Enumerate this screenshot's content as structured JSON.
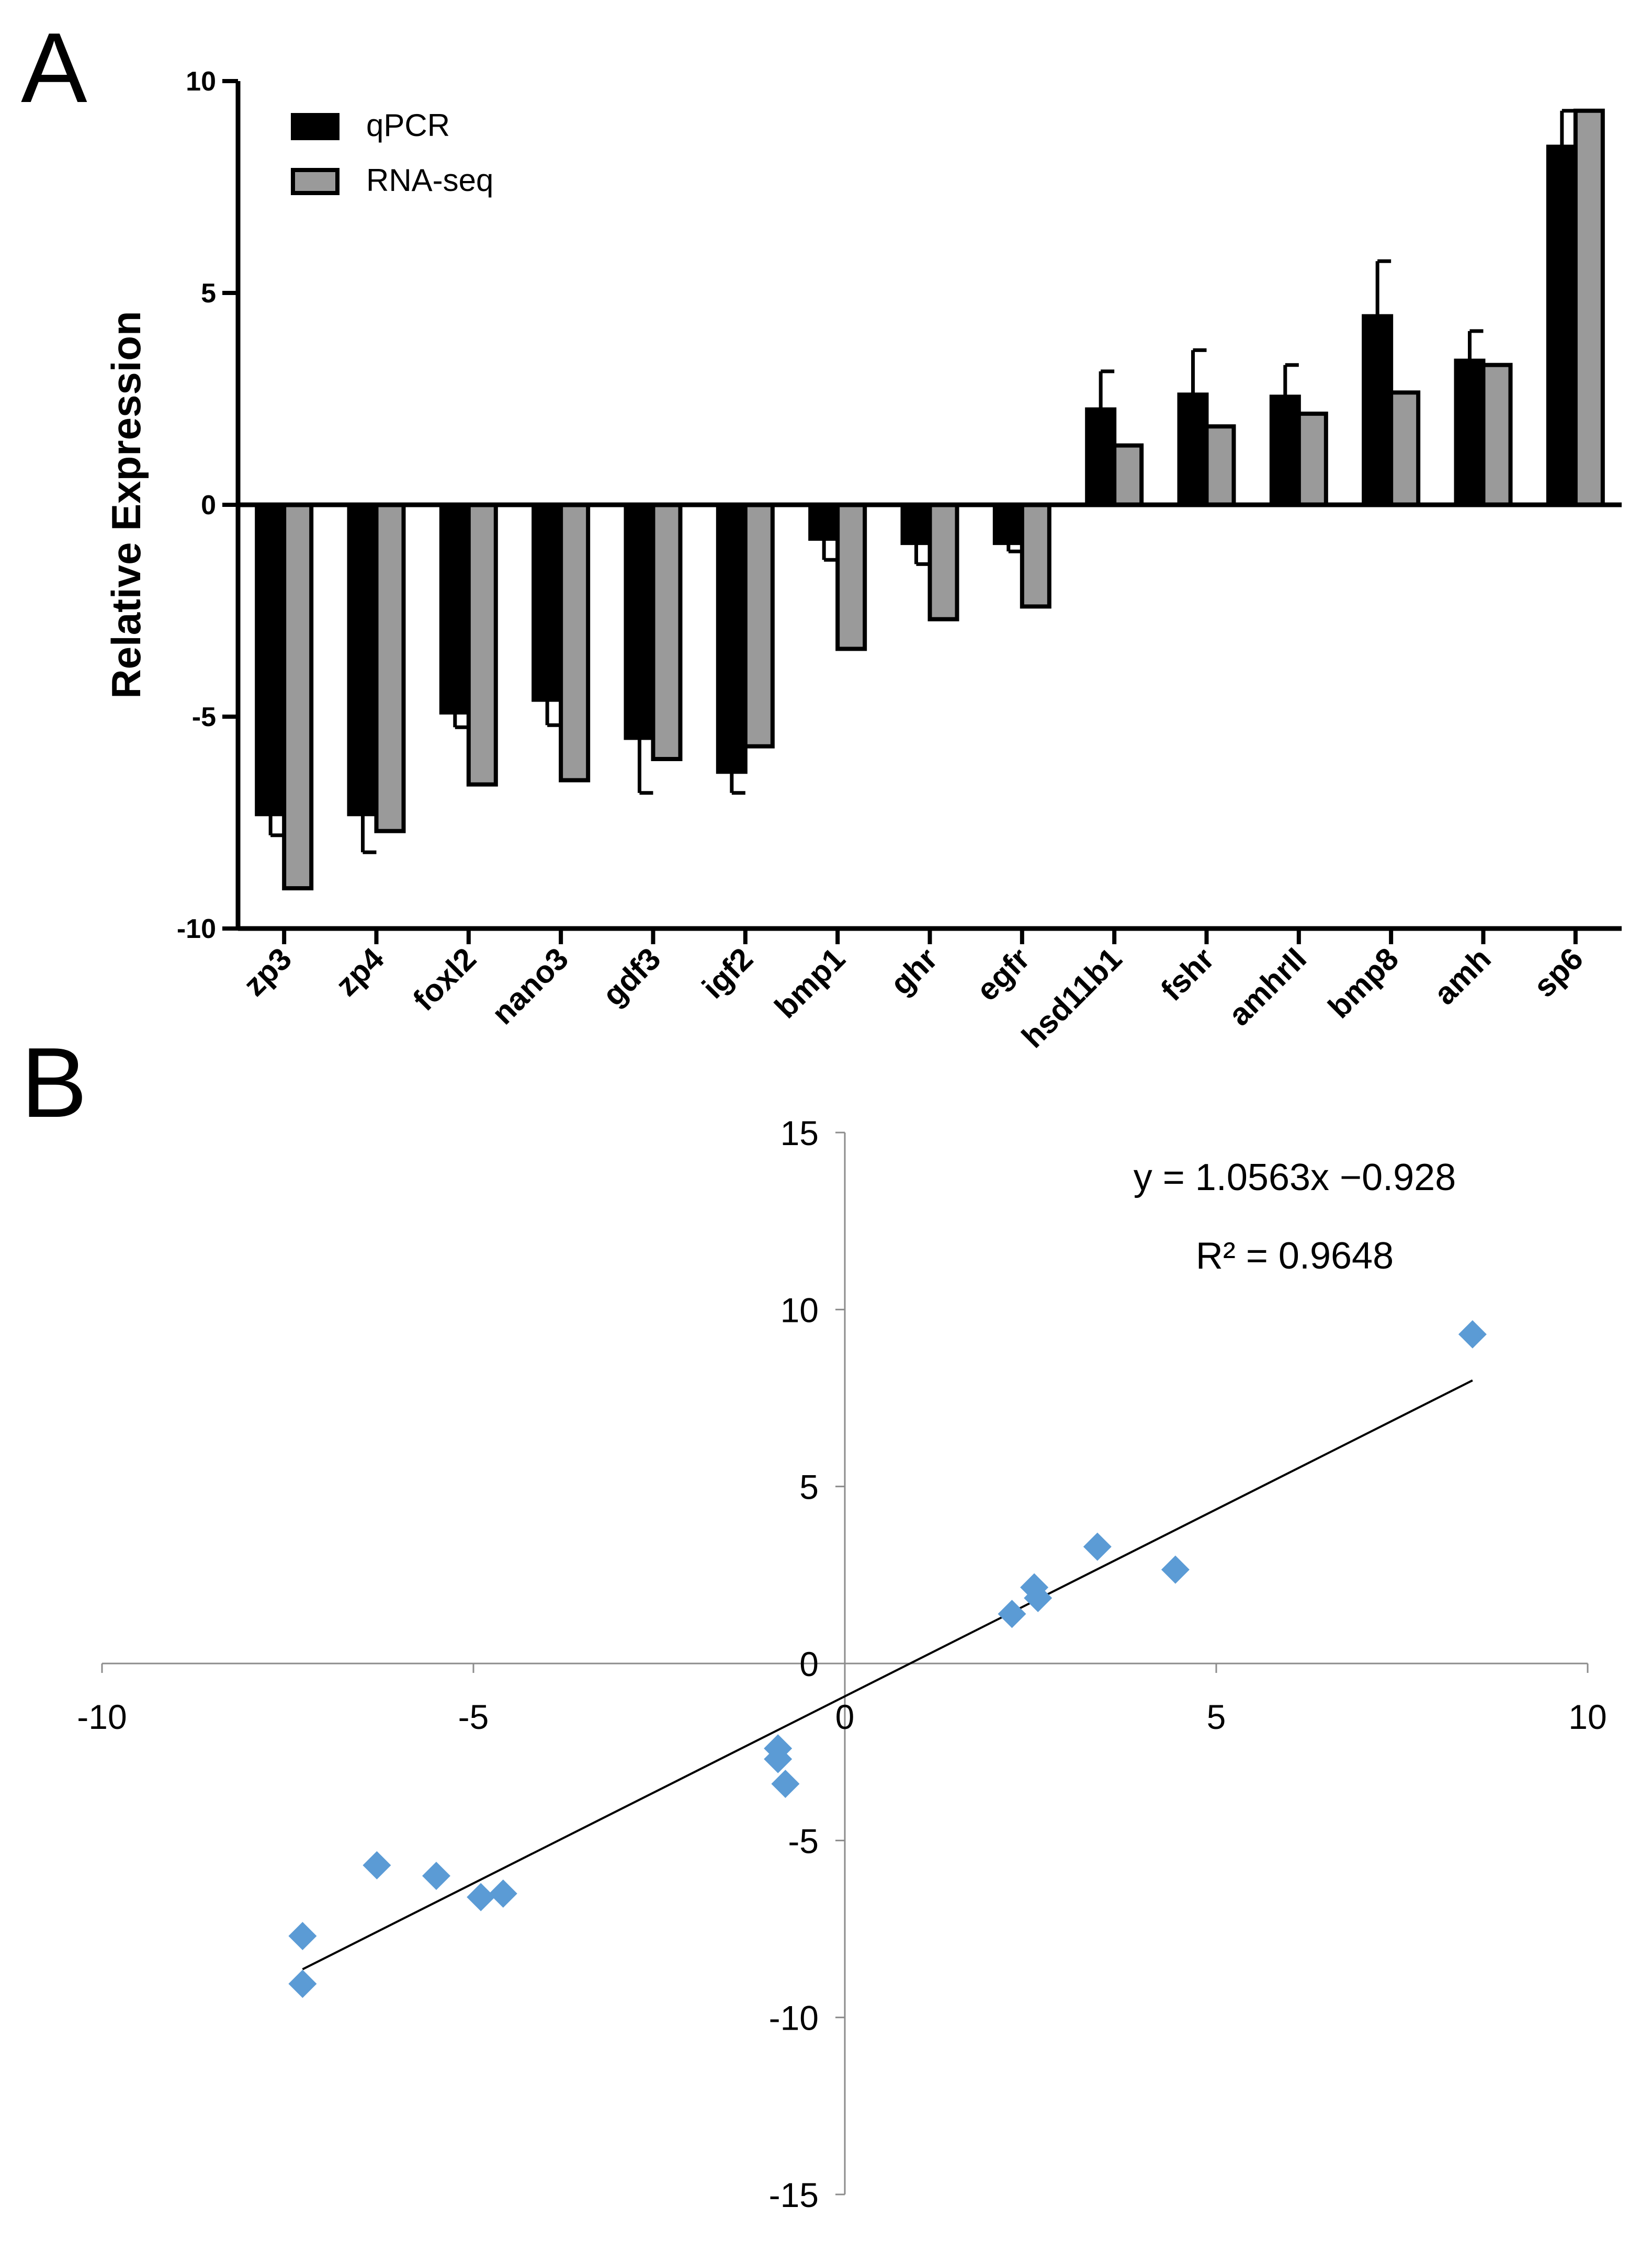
{
  "panels": {
    "a_letter": "A",
    "b_letter": "B"
  },
  "chart_data": [
    {
      "type": "bar",
      "title": "",
      "xlabel": "",
      "ylabel": "Relative Expression",
      "ylim": [
        -10,
        10
      ],
      "yticks": [
        10,
        5,
        0,
        -5,
        -10
      ],
      "legend_position": "top-left",
      "categories": [
        "zp3",
        "zp4",
        "foxl2",
        "nano3",
        "gdf3",
        "igf2",
        "bmp1",
        "ghr",
        "egfr",
        "hsd11b1",
        "fshr",
        "amhrII",
        "bmp8",
        "amh",
        "sp6"
      ],
      "series": [
        {
          "name": "qPCR",
          "color": "#000000",
          "values": [
            -7.3,
            -7.3,
            -4.9,
            -4.6,
            -5.5,
            -6.3,
            -0.8,
            -0.9,
            -0.9,
            2.25,
            2.6,
            2.55,
            4.45,
            3.4,
            8.45
          ],
          "errors": [
            0.5,
            0.9,
            0.35,
            0.6,
            1.3,
            0.5,
            0.5,
            0.5,
            0.2,
            0.9,
            1.05,
            0.75,
            1.3,
            0.7,
            0.85
          ]
        },
        {
          "name": "RNA-seq",
          "color": "#9a9a9a",
          "values": [
            -9.05,
            -7.7,
            -6.6,
            -6.5,
            -6.0,
            -5.7,
            -3.4,
            -2.7,
            -2.4,
            1.4,
            1.85,
            2.15,
            2.65,
            3.3,
            9.3
          ]
        }
      ]
    },
    {
      "type": "scatter",
      "title": "",
      "xlabel": "",
      "ylabel": "",
      "xlim": [
        -10,
        10
      ],
      "ylim": [
        -15,
        15
      ],
      "xticks": [
        -10,
        -5,
        0,
        5,
        10
      ],
      "yticks": [
        15,
        10,
        5,
        0,
        -5,
        -10,
        -15
      ],
      "marker_color": "#5b9bd5",
      "points": [
        {
          "x": -7.3,
          "y": -9.05
        },
        {
          "x": -7.3,
          "y": -7.7
        },
        {
          "x": -4.9,
          "y": -6.6
        },
        {
          "x": -4.6,
          "y": -6.5
        },
        {
          "x": -5.5,
          "y": -6.0
        },
        {
          "x": -6.3,
          "y": -5.7
        },
        {
          "x": -0.8,
          "y": -3.4
        },
        {
          "x": -0.9,
          "y": -2.7
        },
        {
          "x": -0.9,
          "y": -2.4
        },
        {
          "x": 2.25,
          "y": 1.4
        },
        {
          "x": 2.6,
          "y": 1.85
        },
        {
          "x": 2.55,
          "y": 2.15
        },
        {
          "x": 4.45,
          "y": 2.65
        },
        {
          "x": 3.4,
          "y": 3.3
        },
        {
          "x": 8.45,
          "y": 9.3
        }
      ],
      "trendline": {
        "slope": 1.0563,
        "intercept": -0.928,
        "x_range": [
          -7.3,
          8.45
        ]
      },
      "equation": "y = 1.0563x −0.928",
      "r_squared": "R² = 0.9648"
    }
  ]
}
